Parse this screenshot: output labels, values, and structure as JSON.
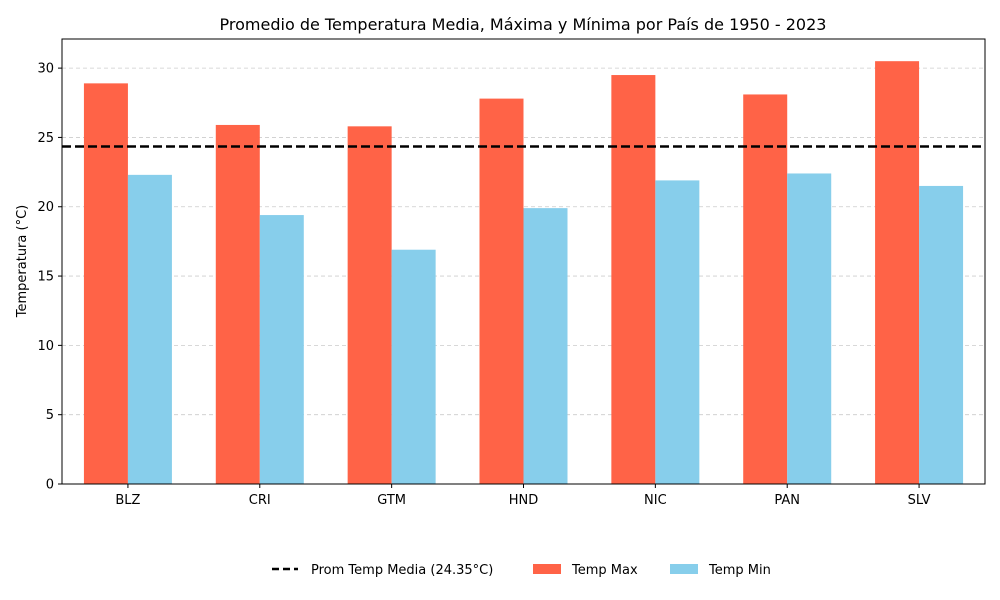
{
  "chart_data": {
    "type": "bar",
    "title": "Promedio de Temperatura Media, Máxima y Mínima por País de 1950 - 2023",
    "xlabel": "",
    "ylabel": "Temperatura (°C)",
    "categories": [
      "BLZ",
      "CRI",
      "GTM",
      "HND",
      "NIC",
      "PAN",
      "SLV"
    ],
    "series": [
      {
        "name": "Temp Max",
        "color": "#ff6347",
        "values": [
          28.9,
          25.9,
          25.8,
          27.8,
          29.5,
          28.1,
          30.5
        ]
      },
      {
        "name": "Temp Min",
        "color": "#87ceeb",
        "values": [
          22.3,
          19.4,
          16.9,
          19.9,
          21.9,
          22.4,
          21.5
        ]
      }
    ],
    "reference_line": {
      "label": "Prom Temp Media (24.35°C)",
      "value": 24.35,
      "color": "#000000",
      "style": "dashed"
    },
    "yticks": [
      0,
      5,
      10,
      15,
      20,
      25,
      30
    ],
    "ylim": [
      0,
      32.1
    ],
    "grid": "y-dashed",
    "legend_position": "bottom-center"
  }
}
